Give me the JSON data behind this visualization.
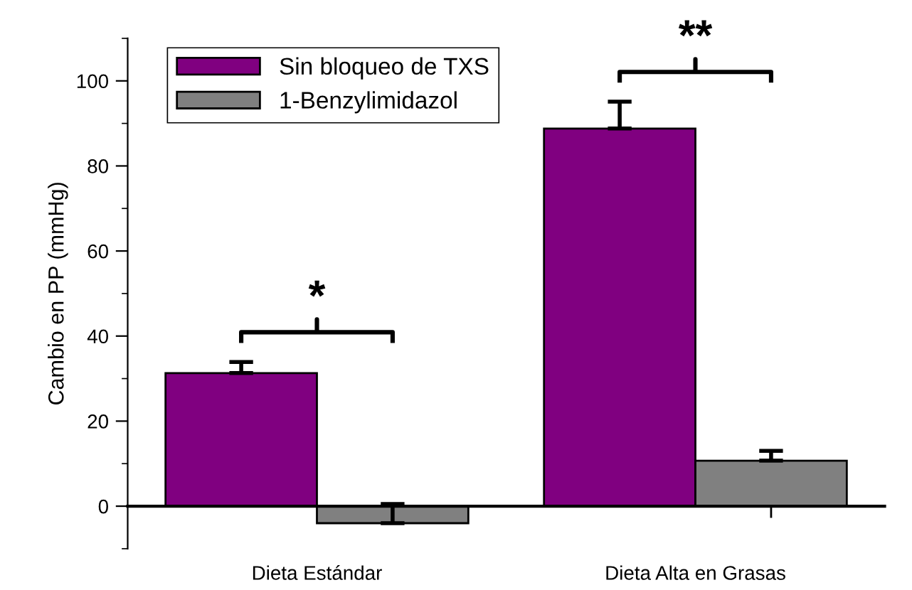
{
  "chart_data": {
    "type": "bar",
    "ylabel": "Cambio en PP (mmHg)",
    "categories": [
      "Dieta Estándar",
      "Dieta Alta en Grasas"
    ],
    "series": [
      {
        "name": "Sin bloqueo de TXS",
        "color": "#800080",
        "values": [
          31.3,
          88.8
        ],
        "errors": [
          2.6,
          6.3
        ]
      },
      {
        "name": "1-Benzylimidazol",
        "color": "#808080",
        "values": [
          -4,
          10.7
        ],
        "errors": [
          4.5,
          2.3
        ]
      }
    ],
    "ylim": [
      -10,
      110
    ],
    "yticks": [
      0,
      20,
      40,
      60,
      80,
      100
    ],
    "legend": "top left",
    "annotations": [
      "*",
      "**"
    ]
  }
}
